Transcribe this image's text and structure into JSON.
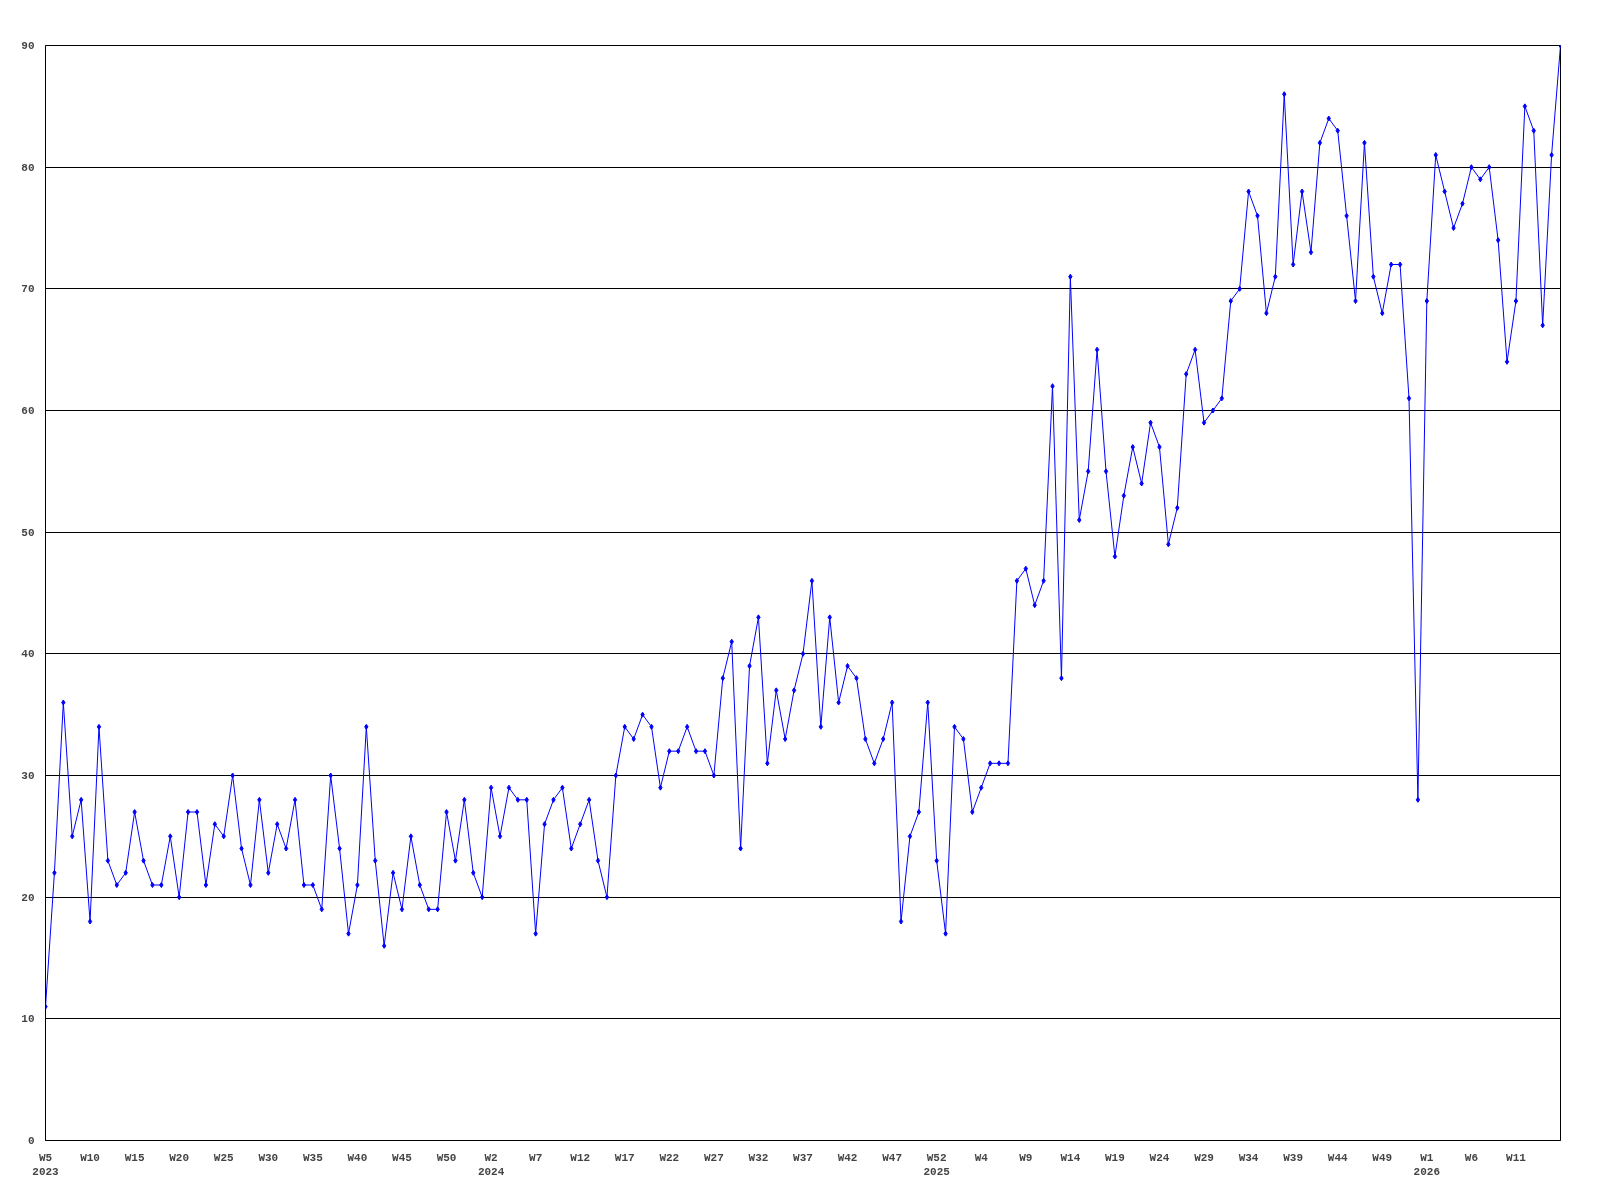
{
  "chart_data": {
    "type": "line",
    "color": "#0000ff",
    "marker": "diamond",
    "grid": "y",
    "ylim": [
      0,
      90
    ],
    "yticks": [
      0,
      10,
      20,
      30,
      40,
      50,
      60,
      70,
      80,
      90
    ],
    "categories": [
      "W5\n2023",
      null,
      null,
      null,
      null,
      "W10",
      null,
      null,
      null,
      null,
      "W15",
      null,
      null,
      null,
      null,
      "W20",
      null,
      null,
      null,
      null,
      "W25",
      null,
      null,
      null,
      null,
      "W30",
      null,
      null,
      null,
      null,
      "W35",
      null,
      null,
      null,
      null,
      "W40",
      null,
      null,
      null,
      null,
      "W45",
      null,
      null,
      null,
      null,
      "W50",
      null,
      null,
      null,
      null,
      "W2\n2024",
      null,
      null,
      null,
      null,
      "W7",
      null,
      null,
      null,
      null,
      "W12",
      null,
      null,
      null,
      null,
      "W17",
      null,
      null,
      null,
      null,
      "W22",
      null,
      null,
      null,
      null,
      "W27",
      null,
      null,
      null,
      null,
      "W32",
      null,
      null,
      null,
      null,
      "W37",
      null,
      null,
      null,
      null,
      "W42",
      null,
      null,
      null,
      null,
      "W47",
      null,
      null,
      null,
      null,
      "W52\n2025",
      null,
      null,
      null,
      null,
      "W4",
      null,
      null,
      null,
      null,
      "W9",
      null,
      null,
      null,
      null,
      "W14",
      null,
      null,
      null,
      null,
      "W19",
      null,
      null,
      null,
      null,
      "W24",
      null,
      null,
      null,
      null,
      "W29",
      null,
      null,
      null,
      null,
      "W34",
      null,
      null,
      null,
      null,
      "W39",
      null,
      null,
      null,
      null,
      "W44",
      null,
      null,
      null,
      null,
      "W49",
      null,
      null,
      null,
      null,
      "W1\n2026",
      null,
      null,
      null,
      null,
      "W6",
      null,
      null,
      null,
      null,
      "W11",
      null,
      null,
      null,
      null,
      null
    ],
    "values": [
      11,
      22,
      36,
      25,
      28,
      18,
      34,
      23,
      21,
      22,
      27,
      23,
      21,
      21,
      25,
      20,
      27,
      27,
      21,
      26,
      25,
      30,
      24,
      21,
      28,
      22,
      26,
      24,
      28,
      21,
      21,
      19,
      30,
      24,
      17,
      21,
      34,
      23,
      16,
      22,
      19,
      25,
      21,
      19,
      19,
      27,
      23,
      28,
      22,
      20,
      29,
      25,
      29,
      28,
      28,
      17,
      26,
      28,
      29,
      24,
      26,
      28,
      23,
      20,
      30,
      34,
      33,
      35,
      34,
      29,
      32,
      32,
      34,
      32,
      32,
      30,
      38,
      41,
      24,
      39,
      43,
      31,
      37,
      33,
      37,
      40,
      46,
      34,
      43,
      36,
      39,
      38,
      33,
      31,
      33,
      36,
      18,
      25,
      27,
      36,
      23,
      17,
      34,
      33,
      27,
      29,
      31,
      31,
      31,
      46,
      47,
      44,
      46,
      62,
      38,
      71,
      51,
      55,
      65,
      55,
      48,
      53,
      57,
      54,
      59,
      57,
      49,
      52,
      63,
      65,
      59,
      60,
      61,
      69,
      70,
      78,
      76,
      68,
      71,
      86,
      72,
      78,
      73,
      82,
      84,
      83,
      76,
      69,
      82,
      71,
      68,
      72,
      72,
      61,
      28,
      69,
      81,
      78,
      75,
      77,
      80,
      79,
      80,
      74,
      64,
      69,
      85,
      83,
      67,
      81,
      90
    ]
  }
}
